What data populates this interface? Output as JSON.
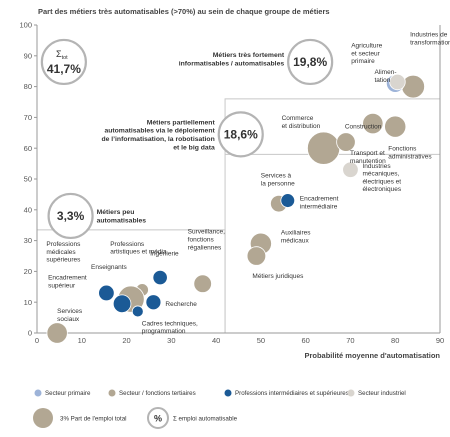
{
  "chart_data": {
    "type": "scatter",
    "subtype": "bubble",
    "title": "Part des métiers très automatisables (>70%) au sein de chaque groupe de métiers",
    "xlabel": "Probabilité moyenne d'automatisation",
    "xlim": [
      0,
      90
    ],
    "ylim": [
      0,
      100
    ],
    "xticks": [
      "0",
      "10",
      "20",
      "30",
      "40",
      "50",
      "60",
      "70",
      "80",
      "90"
    ],
    "yticks": [
      "0",
      "10",
      "20",
      "30",
      "40",
      "50",
      "60",
      "70",
      "80",
      "90",
      "100"
    ],
    "colors": {
      "primaire": "#9db3d8",
      "tertiaire": "#b2a793",
      "intermediaire": "#1b5a96",
      "industriel": "#d9d5cf",
      "frame": "#c8c8c8",
      "ring": "#b4b4b4",
      "axis": "#999999"
    },
    "legend": {
      "series": [
        {
          "key": "primaire",
          "label": "Secteur primaire"
        },
        {
          "key": "tertiaire",
          "label": "Secteur / fonctions tertiaires"
        },
        {
          "key": "intermediaire",
          "label": "Professions intermédiaires et supérieures"
        },
        {
          "key": "industriel",
          "label": "Secteur industriel"
        }
      ],
      "size_label": "3%  Part de l'emploi total",
      "sum_symbol": "%",
      "sum_label": "Σ emploi automatisable"
    },
    "groups": [
      {
        "label": "Σtot",
        "value": "41,7%",
        "x": 6,
        "y": 88
      },
      {
        "label": "Métiers très fortement informatisables / automatisables",
        "value": "19,8%",
        "x": 61,
        "y": 88
      },
      {
        "label": "Métiers partiellement automatisables via le déploiement de l'informatisation, la robotisation et le big data",
        "value": "18,6%",
        "x": 45.5,
        "y": 64.5
      },
      {
        "label": "Métiers peu automatisables",
        "value": "3,3%",
        "x": 7.5,
        "y": 38
      }
    ],
    "bubbles": [
      {
        "label": "Industries de transformation",
        "x": 84,
        "y": 80,
        "size": 3.0,
        "series": "tertiaire"
      },
      {
        "label": "Agriculture et secteur primaire",
        "x": 80,
        "y": 81,
        "size": 1.8,
        "series": "primaire"
      },
      {
        "label": "Alimentation",
        "x": 80.5,
        "y": 81.5,
        "size": 1.4,
        "series": "industriel"
      },
      {
        "label": "Construction",
        "x": 75,
        "y": 68,
        "size": 2.4,
        "series": "tertiaire"
      },
      {
        "label": "Fonctions administratives",
        "x": 80,
        "y": 67,
        "size": 2.6,
        "series": "tertiaire"
      },
      {
        "label": "Commerce et distribution",
        "x": 64,
        "y": 60,
        "size": 6.0,
        "series": "tertiaire"
      },
      {
        "label": "Transport et manutention",
        "x": 69,
        "y": 62,
        "size": 2.0,
        "series": "tertiaire"
      },
      {
        "label": "Industries mécaniques, électriques et électroniques",
        "x": 70,
        "y": 53,
        "size": 1.4,
        "series": "industriel"
      },
      {
        "label": "Services à la personne",
        "x": 54,
        "y": 42,
        "size": 1.6,
        "series": "tertiaire"
      },
      {
        "label": "Encadrement intermédiaire",
        "x": 56,
        "y": 43,
        "size": 1.1,
        "series": "intermediaire"
      },
      {
        "label": "Auxiliaires médicaux",
        "x": 50,
        "y": 29,
        "size": 2.6,
        "series": "tertiaire"
      },
      {
        "label": "Métiers juridiques",
        "x": 49,
        "y": 25,
        "size": 2.0,
        "series": "tertiaire"
      },
      {
        "label": "Surveillance, fonctions régaliennes",
        "x": 37,
        "y": 16,
        "size": 1.8,
        "series": "tertiaire"
      },
      {
        "label": "Ingénierie",
        "x": 27.5,
        "y": 18,
        "size": 1.2,
        "series": "intermediaire"
      },
      {
        "label": "Professions artistiques et média",
        "x": 23.5,
        "y": 14,
        "size": 0.9,
        "series": "tertiaire"
      },
      {
        "label": "Enseignants",
        "x": 21,
        "y": 11,
        "size": 4.0,
        "series": "tertiaire"
      },
      {
        "label": "Professions médicales supérieures",
        "x": 15.5,
        "y": 13,
        "size": 1.4,
        "series": "intermediaire"
      },
      {
        "label": "Encadrement supérieur",
        "x": 19,
        "y": 9.5,
        "size": 1.8,
        "series": "intermediaire"
      },
      {
        "label": "Recherche",
        "x": 26,
        "y": 10,
        "size": 1.3,
        "series": "intermediaire"
      },
      {
        "label": "Cadres techniques, programmation",
        "x": 22.5,
        "y": 7,
        "size": 0.7,
        "series": "intermediaire"
      },
      {
        "label": "Services sociaux",
        "x": 4.5,
        "y": 0,
        "size": 2.4,
        "series": "tertiaire"
      }
    ]
  }
}
